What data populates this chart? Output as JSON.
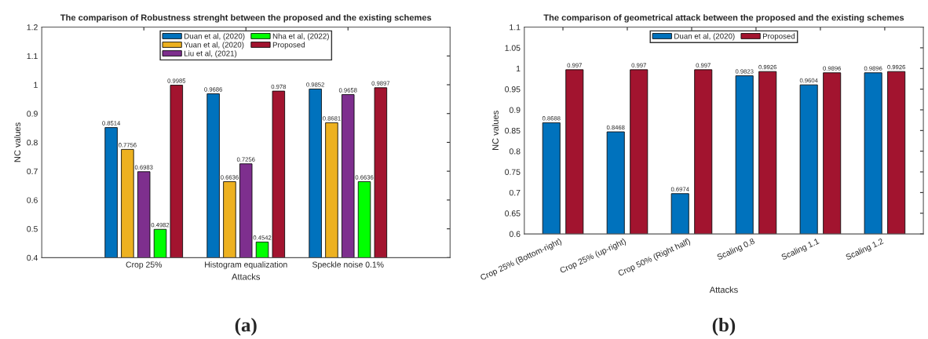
{
  "chart_data": [
    {
      "type": "bar",
      "title": "The comparison of Robustness strenght between the proposed and the existing schemes",
      "xlabel": "Attacks",
      "ylabel": "NC values",
      "categories": [
        "Crop 25%",
        "Histogram equalization",
        "Speckle noise 0.1%"
      ],
      "series": [
        {
          "name": "Duan et al, (2020)",
          "color": "#0072bd",
          "values": [
            0.8514,
            0.9686,
            0.9852
          ]
        },
        {
          "name": "Yuan et al, (2020)",
          "color": "#edb120",
          "values": [
            0.7756,
            0.6636,
            0.8681
          ]
        },
        {
          "name": "Liu et al, (2021)",
          "color": "#7e2f8e",
          "values": [
            0.6983,
            0.7256,
            0.9658
          ]
        },
        {
          "name": "Nha et al, (2022)",
          "color": "#00ff00",
          "values": [
            0.4982,
            0.4542,
            0.6636
          ]
        },
        {
          "name": "Proposed",
          "color": "#a2142f",
          "values": [
            0.9985,
            0.978,
            0.9897
          ]
        }
      ],
      "ylim": [
        0.4,
        1.2
      ],
      "yticks": [
        0.4,
        0.5,
        0.6,
        0.7,
        0.8,
        0.9,
        1,
        1.1,
        1.2
      ],
      "data_labels": true,
      "legend": "top",
      "grid": false,
      "annotations": [
        "(a)"
      ]
    },
    {
      "type": "bar",
      "title": "The comparison of geometrical attack between the proposed and the existing schemes",
      "xlabel": "Attacks",
      "ylabel": "NC values",
      "categories": [
        "Crop 25% (Bottom-right)",
        "Crop 25% (up-right)",
        "Crop 50% (Right half)",
        "Scaling 0.8",
        "Scaling 1.1",
        "Scaling 1.2"
      ],
      "series": [
        {
          "name": "Duan et al, (2020)",
          "color": "#0072bd",
          "values": [
            0.8688,
            0.8468,
            0.6974,
            0.9823,
            0.9604,
            0.9896
          ]
        },
        {
          "name": "Proposed",
          "color": "#a2142f",
          "values": [
            0.997,
            0.997,
            0.997,
            0.9926,
            0.9896,
            0.9926
          ]
        }
      ],
      "ylim": [
        0.6,
        1.1
      ],
      "yticks": [
        0.6,
        0.65,
        0.7,
        0.75,
        0.8,
        0.85,
        0.9,
        0.95,
        1,
        1.05,
        1.1
      ],
      "data_labels": true,
      "legend": "top",
      "grid": false,
      "annotations": [
        "(b)"
      ]
    }
  ]
}
